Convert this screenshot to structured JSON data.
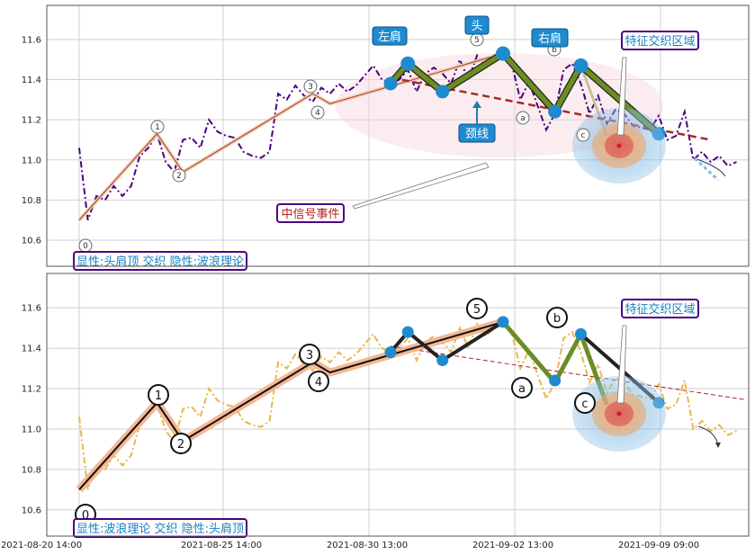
{
  "chart_data": {
    "type": "line",
    "x_tick_labels": [
      "2021-08-20 14:00",
      "2021-08-25 14:00",
      "2021-08-30 13:00",
      "2021-09-02 13:00",
      "2021-09-09 09:00"
    ],
    "y_ticks": [
      10.6,
      10.8,
      11.0,
      11.2,
      11.4,
      11.6
    ],
    "ylim": [
      10.47,
      11.77
    ],
    "grid": true,
    "price": [
      11.06,
      10.7,
      10.82,
      10.8,
      10.87,
      10.82,
      10.87,
      11.02,
      11.06,
      11.13,
      10.99,
      10.94,
      11.1,
      11.11,
      11.06,
      11.2,
      11.14,
      11.12,
      11.11,
      11.04,
      11.02,
      11.01,
      11.04,
      11.33,
      11.3,
      11.37,
      11.32,
      11.29,
      11.36,
      11.33,
      11.38,
      11.34,
      11.37,
      11.42,
      11.47,
      11.4,
      11.38,
      11.4,
      11.45,
      11.34,
      11.43,
      11.46,
      11.43,
      11.38,
      11.5,
      11.4,
      11.52,
      11.46,
      11.5,
      11.53,
      11.48,
      11.3,
      11.39,
      11.27,
      11.15,
      11.23,
      11.45,
      11.48,
      11.38,
      11.23,
      11.32,
      11.18,
      11.25,
      11.23,
      11.17,
      11.16,
      11.15,
      11.22,
      11.1,
      11.12,
      11.24,
      11.0,
      11.04,
      10.99,
      11.02,
      10.97,
      10.99
    ],
    "panels": [
      {
        "legend": "显性:头肩顶 交织 隐性:波浪理论",
        "hs_points": [
          {
            "i": 36,
            "y": 11.38
          },
          {
            "i": 38,
            "y": 11.48
          },
          {
            "i": 42,
            "y": 11.34
          },
          {
            "i": 49,
            "y": 11.53
          },
          {
            "i": 55,
            "y": 11.24
          },
          {
            "i": 58,
            "y": 11.47
          },
          {
            "i": 67,
            "y": 11.13
          }
        ],
        "neckline": [
          {
            "i": 36,
            "y": 11.41
          },
          {
            "i": 73,
            "y": 11.1
          }
        ],
        "waves": [
          {
            "label": "0",
            "i": 0,
            "y": 10.7
          },
          {
            "label": "1",
            "i": 9,
            "y": 11.13
          },
          {
            "label": "2",
            "i": 12,
            "y": 10.94
          },
          {
            "label": "3",
            "i": 27,
            "y": 11.33
          },
          {
            "label": "4",
            "i": 29,
            "y": 11.28
          },
          {
            "label": "5",
            "i": 49,
            "y": 11.53
          },
          {
            "label": "a",
            "i": 55,
            "y": 11.23
          },
          {
            "label": "b",
            "i": 58,
            "y": 11.47
          },
          {
            "label": "c",
            "i": 61,
            "y": 11.12
          }
        ],
        "annotations": {
          "left_shoulder": "左肩",
          "head": "头",
          "right_shoulder": "右肩",
          "neckline": "颈线",
          "zone": "特征交织区域",
          "mid_signal": "中信号事件"
        }
      },
      {
        "legend": "显性:波浪理论 交织 隐性:头肩顶",
        "zone": "特征交织区域"
      }
    ]
  },
  "colors": {
    "price_top": "#4b0082",
    "price_bottom": "#e8b84a",
    "hs_fill": "#6b8e23",
    "hs_node": "#1e8bd0",
    "neckline": "#a52a2a",
    "wave_band": "#f4b08a",
    "label_box": "#1e8bd0",
    "legend_border": "#4b0082"
  }
}
